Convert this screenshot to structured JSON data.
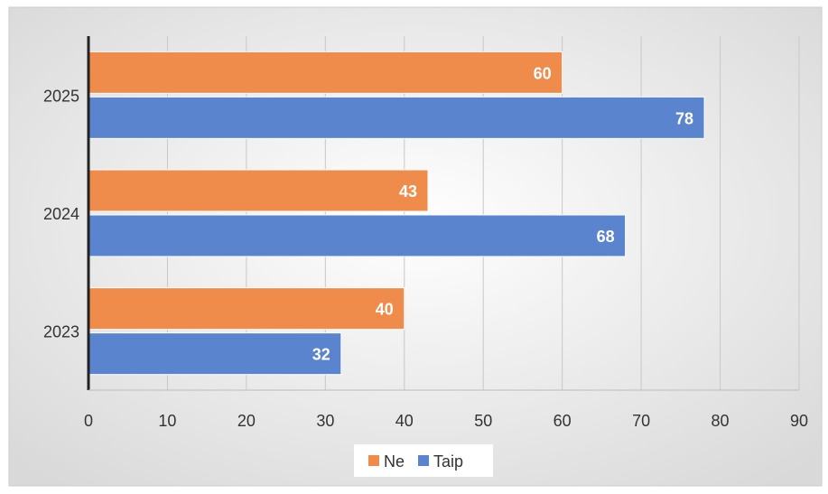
{
  "chart_data": {
    "type": "bar",
    "orientation": "horizontal",
    "categories": [
      "2023",
      "2024",
      "2025"
    ],
    "series": [
      {
        "name": "Ne",
        "values": [
          40,
          43,
          60
        ],
        "color": "#F08C4B"
      },
      {
        "name": "Taip",
        "values": [
          32,
          68,
          78
        ],
        "color": "#5B84CF"
      }
    ],
    "xlim": [
      0,
      90
    ],
    "x_ticks": [
      "0",
      "10",
      "20",
      "30",
      "40",
      "50",
      "60",
      "70",
      "80",
      "90"
    ],
    "grid": "vertical",
    "legend": "bottom",
    "data_labels": true
  }
}
